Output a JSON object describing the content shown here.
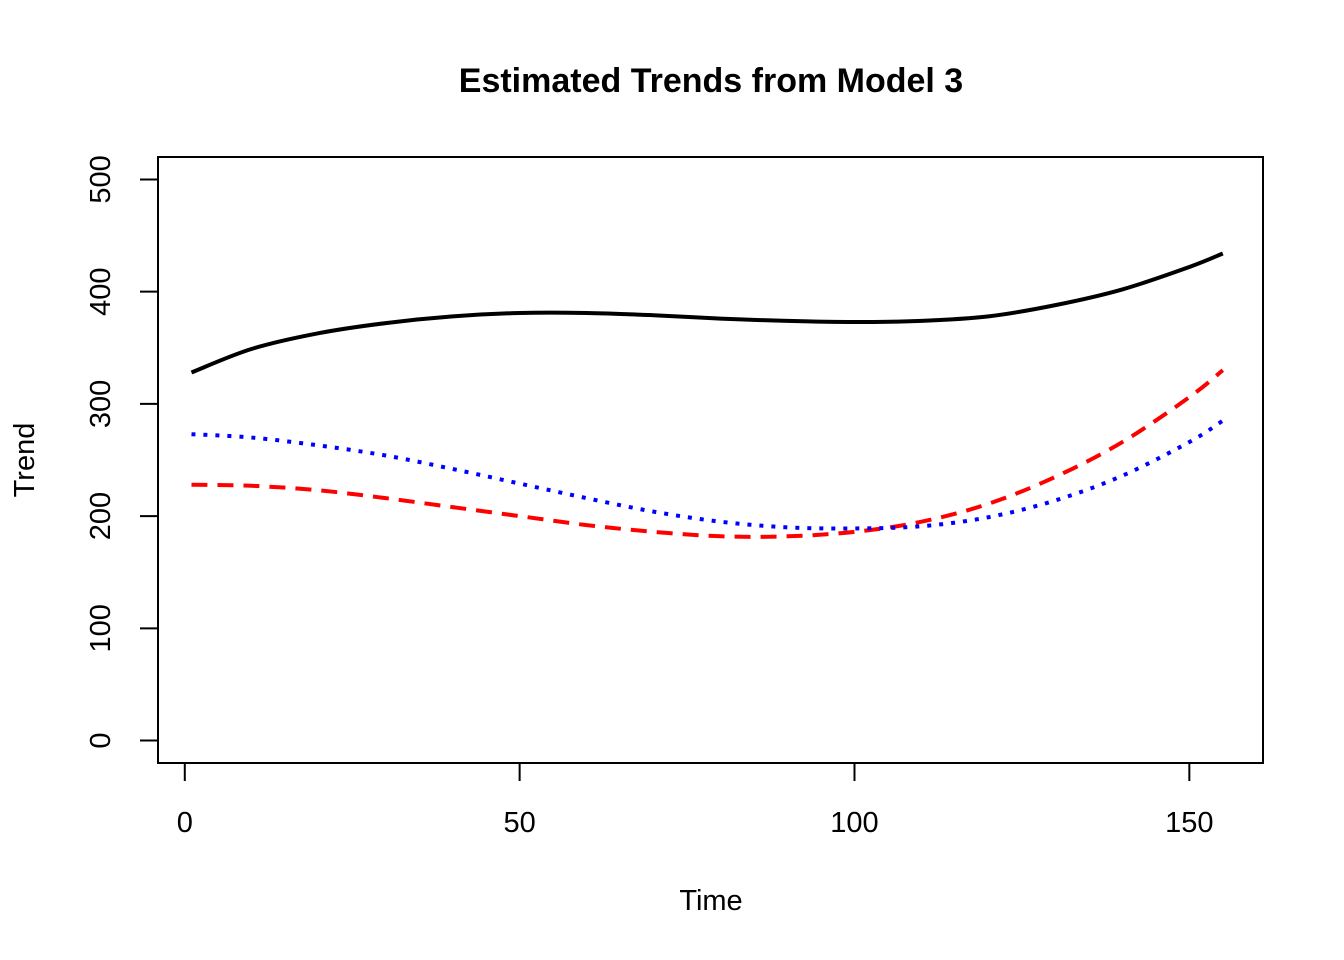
{
  "chart_data": {
    "type": "line",
    "title": "Estimated Trends from Model 3",
    "xlabel": "Time",
    "ylabel": "Trend",
    "xlim": [
      -4,
      161
    ],
    "ylim": [
      -20,
      520
    ],
    "x_ticks": [
      0,
      50,
      100,
      150
    ],
    "y_ticks": [
      0,
      100,
      200,
      300,
      400,
      500
    ],
    "grid": false,
    "legend": "none",
    "series": [
      {
        "color": "#000000",
        "dash": "solid",
        "x": [
          1,
          10,
          20,
          30,
          40,
          50,
          60,
          70,
          80,
          90,
          100,
          110,
          120,
          130,
          140,
          150,
          155
        ],
        "values": [
          328,
          349,
          363,
          372,
          378,
          381,
          381,
          379,
          376,
          374,
          373,
          374,
          378,
          388,
          402,
          422,
          434
        ]
      },
      {
        "color": "#ff0000",
        "dash": "dashed",
        "x": [
          1,
          10,
          20,
          30,
          40,
          50,
          60,
          70,
          80,
          90,
          100,
          110,
          120,
          130,
          140,
          150,
          155
        ],
        "values": [
          228,
          227,
          223,
          216,
          208,
          200,
          192,
          186,
          182,
          182,
          186,
          195,
          211,
          235,
          266,
          306,
          330
        ]
      },
      {
        "color": "#0000ff",
        "dash": "dotted",
        "x": [
          1,
          10,
          20,
          30,
          40,
          50,
          60,
          70,
          80,
          90,
          100,
          110,
          120,
          130,
          140,
          150,
          155
        ],
        "values": [
          273,
          270,
          263,
          254,
          242,
          229,
          216,
          204,
          195,
          190,
          189,
          191,
          199,
          214,
          236,
          266,
          285
        ]
      }
    ]
  }
}
